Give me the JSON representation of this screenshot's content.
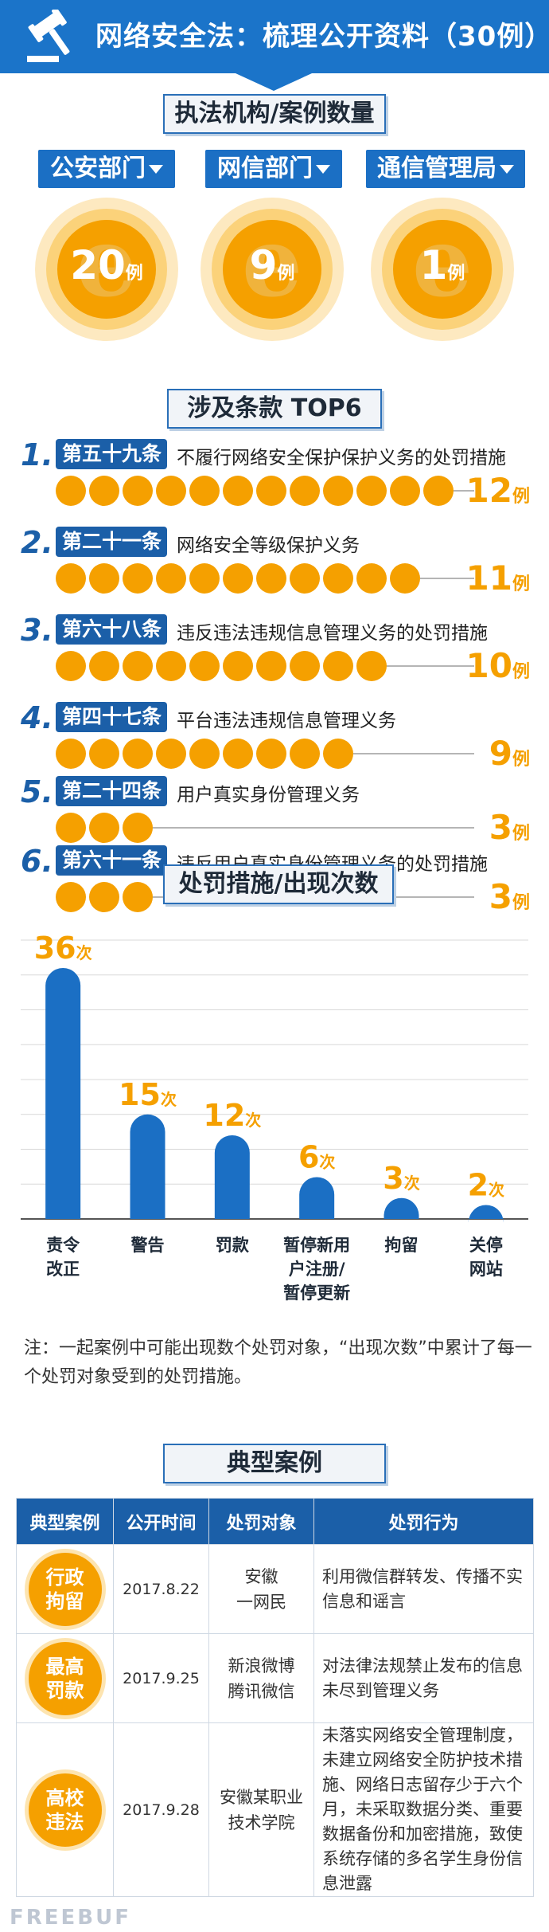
{
  "banner": {
    "title": "网络安全法：梳理公开资料（30例）",
    "icon": "gavel-icon"
  },
  "agencies": {
    "title": "执法机构/案例数量",
    "items": [
      {
        "label": "公安部门",
        "count": "20",
        "unit": "例"
      },
      {
        "label": "网信部门",
        "count": "9",
        "unit": "例"
      },
      {
        "label": "通信管理局",
        "count": "1",
        "unit": "例"
      }
    ]
  },
  "top6": {
    "title": "涉及条款 TOP6",
    "unit": "例",
    "items": [
      {
        "rank": "1.",
        "article": "第五十九条",
        "desc": "不履行网络安全保护保护义务的处罚措施",
        "count": "12",
        "dots": 12
      },
      {
        "rank": "2.",
        "article": "第二十一条",
        "desc": "网络安全等级保护义务",
        "count": "11",
        "dots": 11
      },
      {
        "rank": "3.",
        "article": "第六十八条",
        "desc": "违反违法违规信息管理义务的处罚措施",
        "count": "10",
        "dots": 10
      },
      {
        "rank": "4.",
        "article": "第四十七条",
        "desc": "平台违法违规信息管理义务",
        "count": "9",
        "dots": 9
      },
      {
        "rank": "5.",
        "article": "第二十四条",
        "desc": "用户真实身份管理义务",
        "count": "3",
        "dots": 3
      },
      {
        "rank": "6.",
        "article": "第六十一条",
        "desc": "违反用户真实身份管理义务的处罚措施",
        "count": "3",
        "dots": 3
      }
    ]
  },
  "chart_data": {
    "type": "bar",
    "title": "处罚措施/出现次数",
    "categories": [
      "责令改正",
      "警告",
      "罚款",
      "暂停新用户注册/暂停更新",
      "拘留",
      "关停网站"
    ],
    "category_lines": [
      [
        "责令",
        "改正"
      ],
      [
        "警告"
      ],
      [
        "罚款"
      ],
      [
        "暂停新用",
        "户注册/",
        "暂停更新"
      ],
      [
        "拘留"
      ],
      [
        "关停",
        "网站"
      ]
    ],
    "values": [
      36,
      15,
      12,
      6,
      3,
      2
    ],
    "value_unit": "次",
    "ylim": [
      0,
      40
    ],
    "grid": true,
    "colors": {
      "bar": "#1b6fc4",
      "label": "#f5a000"
    }
  },
  "note": "注：一起案例中可能出现数个处罚对象，“出现次数”中累计了每一个处罚对象受到的处罚措施。",
  "cases": {
    "title": "典型案例",
    "headers": [
      "典型案例",
      "公开时间",
      "处罚对象",
      "处罚行为"
    ],
    "rows": [
      {
        "badge": "行政\n拘留",
        "date": "2017.8.22",
        "target": "安徽\n一网民",
        "action": "利用微信群转发、传播不实信息和谣言"
      },
      {
        "badge": "最高\n罚款",
        "date": "2017.9.25",
        "target": "新浪微博\n腾讯微信",
        "action": "对法律法规禁止发布的信息未尽到管理义务"
      },
      {
        "badge": "高校\n违法",
        "date": "2017.9.28",
        "target": "安徽某职业\n技术学院",
        "action": "未落实网络安全管理制度，未建立网络安全防护技术措施、网络日志留存少于六个月，未采取数据分类、重要数据备份和加密措施，致使系统存储的多名学生身份信息泄露"
      }
    ]
  },
  "watermark": "FREEBUF"
}
